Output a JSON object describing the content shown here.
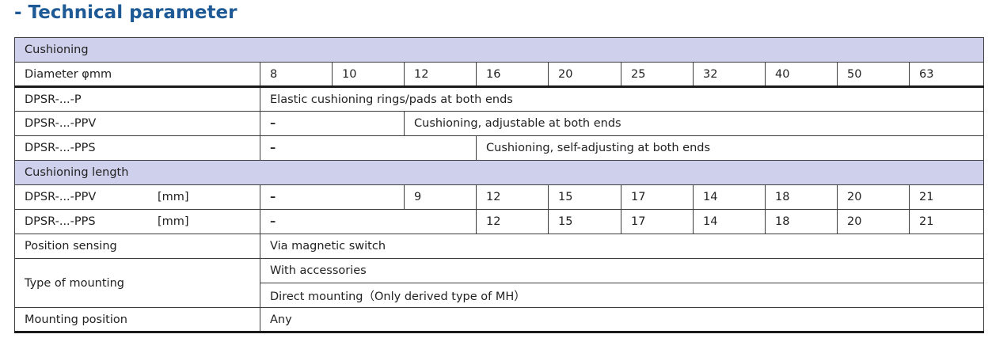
{
  "title": "- Technical parameter",
  "table": {
    "sec_cushioning": "Cushioning",
    "diameter_label": "Diameter φmm",
    "diameters": [
      "8",
      "10",
      "12",
      "16",
      "20",
      "25",
      "32",
      "40",
      "50",
      "63"
    ],
    "p": {
      "label": "DPSR-...-P",
      "value": "Elastic cushioning rings/pads at both ends"
    },
    "ppv": {
      "label": "DPSR-...-PPV",
      "dash": "–",
      "value": "Cushioning, adjustable at both ends"
    },
    "pps": {
      "label": "DPSR-...-PPS",
      "dash": "–",
      "value": "Cushioning, self-adjusting at both ends"
    },
    "sec_length": "Cushioning length",
    "len_ppv": {
      "label": "DPSR-...-PPV",
      "unit": "[mm]",
      "dash": "–",
      "values": [
        "9",
        "12",
        "15",
        "17",
        "14",
        "18",
        "20",
        "21"
      ]
    },
    "len_pps": {
      "label": "DPSR-...-PPS",
      "unit": "[mm]",
      "dash": "–",
      "values": [
        "12",
        "15",
        "17",
        "14",
        "18",
        "20",
        "21"
      ]
    },
    "position_sensing": {
      "label": "Position sensing",
      "value": "Via magnetic switch"
    },
    "mounting_type": {
      "label": "Type of mounting",
      "values": [
        "With accessories",
        "Direct mounting（Only derived type of MH）"
      ]
    },
    "mounting_position": {
      "label": "Mounting position",
      "value": "Any"
    }
  }
}
